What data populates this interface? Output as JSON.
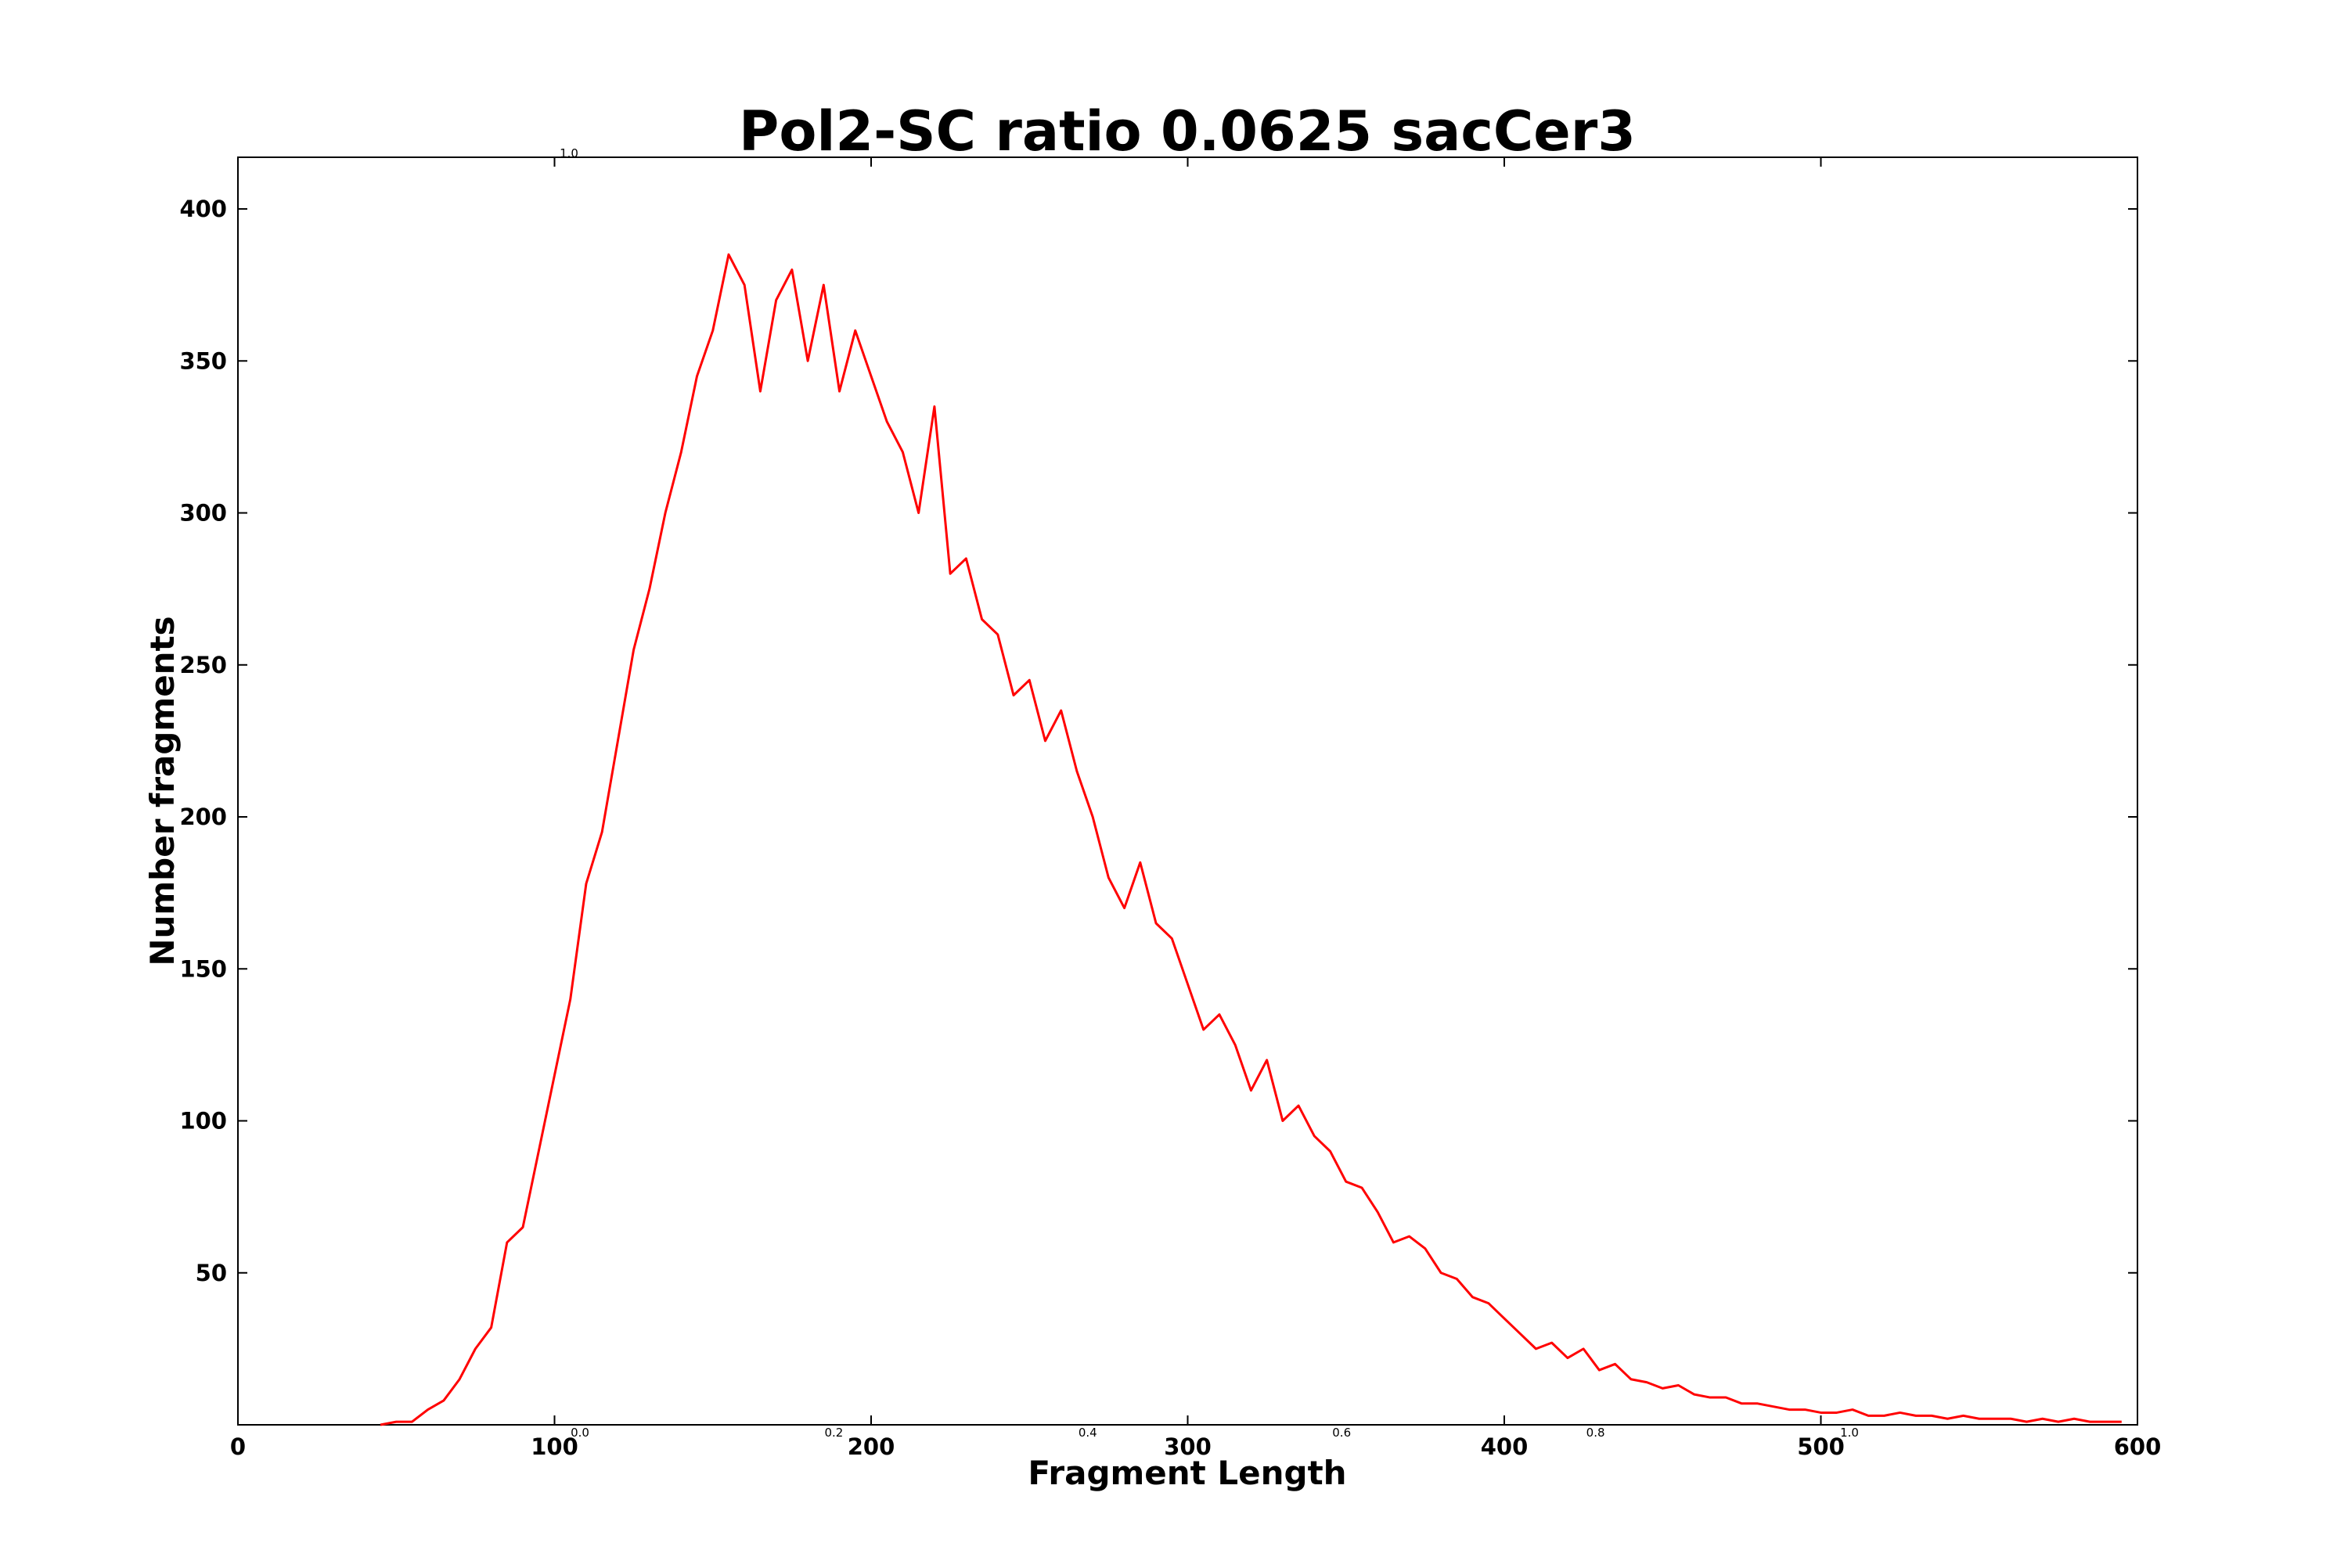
{
  "chart_data": {
    "type": "line",
    "title": "Pol2-SC ratio 0.0625 sacCer3",
    "xlabel": "Fragment Length",
    "ylabel": "Number fragments",
    "x": [
      45,
      50,
      55,
      60,
      65,
      70,
      75,
      80,
      85,
      90,
      95,
      100,
      105,
      110,
      115,
      120,
      125,
      130,
      135,
      140,
      145,
      150,
      155,
      160,
      165,
      170,
      175,
      180,
      185,
      190,
      195,
      200,
      205,
      210,
      215,
      220,
      225,
      230,
      235,
      240,
      245,
      250,
      255,
      260,
      265,
      270,
      275,
      280,
      285,
      290,
      295,
      300,
      305,
      310,
      315,
      320,
      325,
      330,
      335,
      340,
      345,
      350,
      355,
      360,
      365,
      370,
      375,
      380,
      385,
      390,
      395,
      400,
      405,
      410,
      415,
      420,
      425,
      430,
      435,
      440,
      445,
      450,
      455,
      460,
      465,
      470,
      475,
      480,
      485,
      490,
      495,
      500,
      505,
      510,
      515,
      520,
      525,
      530,
      535,
      540,
      545,
      550,
      555,
      560,
      565,
      570,
      575,
      580,
      585,
      590,
      595
    ],
    "series": [
      {
        "color": "#ff0000",
        "values": [
          0,
          1,
          1,
          5,
          8,
          15,
          25,
          32,
          60,
          65,
          90,
          115,
          140,
          178,
          195,
          225,
          255,
          275,
          300,
          320,
          345,
          360,
          385,
          375,
          340,
          370,
          380,
          350,
          375,
          340,
          360,
          345,
          330,
          320,
          300,
          335,
          280,
          285,
          265,
          260,
          240,
          245,
          225,
          235,
          215,
          200,
          180,
          170,
          185,
          165,
          160,
          145,
          130,
          135,
          125,
          110,
          120,
          100,
          105,
          95,
          90,
          80,
          78,
          70,
          60,
          62,
          58,
          50,
          48,
          42,
          40,
          35,
          30,
          25,
          27,
          22,
          25,
          18,
          20,
          15,
          14,
          12,
          13,
          10,
          9,
          9,
          7,
          7,
          6,
          5,
          5,
          4,
          4,
          5,
          3,
          3,
          4,
          3,
          3,
          2,
          3,
          2,
          2,
          2,
          1,
          2,
          1,
          2,
          1,
          1,
          1
        ]
      }
    ],
    "xlim": [
      0,
      600
    ],
    "xticks": [
      0,
      100,
      200,
      300,
      400,
      500,
      600
    ],
    "ylim": [
      0,
      417
    ],
    "yticks": [
      50,
      100,
      150,
      200,
      250,
      300,
      350,
      400
    ],
    "overlay_axis": {
      "xlim": [
        0,
        1
      ],
      "xticks": [
        {
          "value": 0,
          "label": "0.0"
        },
        {
          "value": 0.2,
          "label": "0.2"
        },
        {
          "value": 0.4,
          "label": "0.4"
        },
        {
          "value": 0.6,
          "label": "0.6"
        },
        {
          "value": 0.8,
          "label": "0.8"
        },
        {
          "value": 1,
          "label": "1.0"
        }
      ],
      "ytick_label": "1.0"
    }
  }
}
